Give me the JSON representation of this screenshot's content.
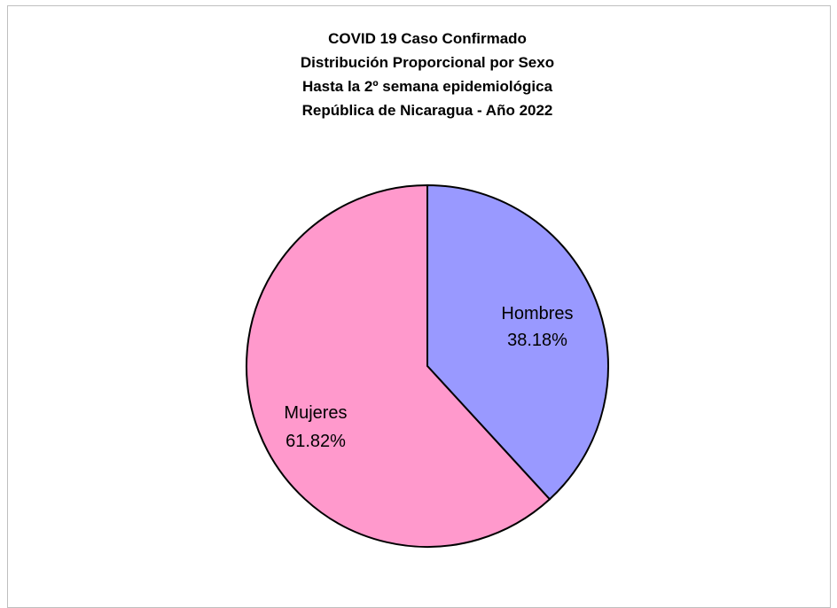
{
  "chart_data": {
    "type": "pie",
    "title_lines": [
      "COVID 19 Caso Confirmado",
      "Distribución Proporcional por Sexo",
      "Hasta la 2º semana epidemiológica",
      "República de Nicaragua - Año 2022"
    ],
    "slices": [
      {
        "label": "Hombres",
        "value": 38.18,
        "value_label": "38.18%",
        "color": "#9999ff"
      },
      {
        "label": "Mujeres",
        "value": 61.82,
        "value_label": "61.82%",
        "color": "#ff99cc"
      }
    ],
    "start_angle": "12 o'clock",
    "direction": "clockwise",
    "labels": "inside",
    "legend": "none"
  }
}
